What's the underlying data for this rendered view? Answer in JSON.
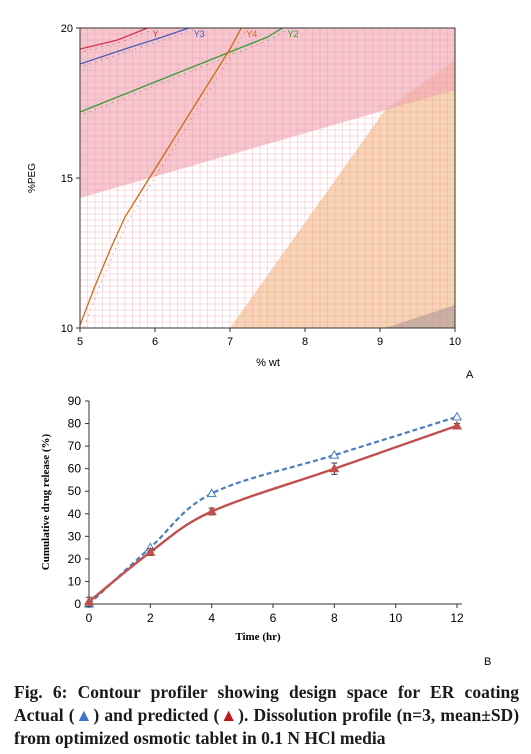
{
  "panels": [
    {
      "id": "A",
      "label": "A",
      "chart_data": {
        "type": "contour",
        "xlabel": "% wt",
        "ylabel": "%PEG",
        "xlim": [
          5,
          10
        ],
        "ylim": [
          10,
          20
        ],
        "xticks": [
          "5",
          "6",
          "7",
          "8",
          "9",
          "10"
        ],
        "yticks": [
          "10",
          "15",
          "20"
        ],
        "grid": true,
        "contours": [
          {
            "name": "Y",
            "color": "#d0364a",
            "points": [
              [
                5,
                19.3
              ],
              [
                5.5,
                19.6
              ],
              [
                5.9,
                20.0
              ]
            ]
          },
          {
            "name": "Y3",
            "color": "#4a5cb8",
            "points": [
              [
                5,
                18.8
              ],
              [
                5.6,
                19.3
              ],
              [
                6.1,
                19.7
              ],
              [
                6.45,
                20.0
              ]
            ]
          },
          {
            "name": "Y2",
            "color": "#3a9a3a",
            "points": [
              [
                5,
                17.2
              ],
              [
                5.5,
                17.7
              ],
              [
                6.0,
                18.2
              ],
              [
                6.5,
                18.7
              ],
              [
                7.0,
                19.2
              ],
              [
                7.5,
                19.7
              ],
              [
                7.7,
                20.0
              ]
            ]
          },
          {
            "name": "Y4",
            "color": "#d06a18",
            "points": [
              [
                5,
                10.1
              ],
              [
                5.2,
                11.4
              ],
              [
                5.4,
                12.6
              ],
              [
                5.6,
                13.7
              ],
              [
                5.8,
                14.5
              ],
              [
                6.0,
                15.3
              ],
              [
                6.2,
                16.1
              ],
              [
                6.4,
                16.9
              ],
              [
                6.6,
                17.7
              ],
              [
                6.8,
                18.5
              ],
              [
                7.0,
                19.3
              ],
              [
                7.15,
                20.0
              ]
            ]
          }
        ]
      }
    },
    {
      "id": "B",
      "label": "B",
      "chart_data": {
        "type": "line",
        "xlabel": "Time (hr)",
        "ylabel": "Cumulative drug release (%)",
        "xlim": [
          0,
          12
        ],
        "ylim": [
          0,
          90
        ],
        "xticks": [
          "0",
          "2",
          "4",
          "6",
          "8",
          "10",
          "12"
        ],
        "yticks": [
          "0",
          "10",
          "20",
          "30",
          "40",
          "50",
          "60",
          "70",
          "80",
          "90"
        ],
        "series": [
          {
            "color": "#4a7cc0",
            "marker": "open-triangle",
            "x": [
              0,
              2,
              4,
              8,
              12
            ],
            "values": [
              0,
              25,
              49,
              66,
              83
            ]
          },
          {
            "color": "#c0504d",
            "marker": "filled-triangle",
            "x": [
              0,
              2,
              4,
              8,
              12
            ],
            "values": [
              1,
              23,
              41,
              60,
              79
            ],
            "error": [
              2,
              1.5,
              1.5,
              2.5,
              1
            ]
          }
        ]
      }
    }
  ],
  "caption": {
    "line1": "Fig. 6: Contour profiler showing design space for ER coating",
    "actual": "Actual",
    "tri_actual": "▲",
    "and_predicted": "and predicted",
    "tri_pred": "▲",
    "rest": ". Dissolution profile (n=3, mean±SD) from optimized osmotic tablet in 0.1 N HCl media"
  }
}
